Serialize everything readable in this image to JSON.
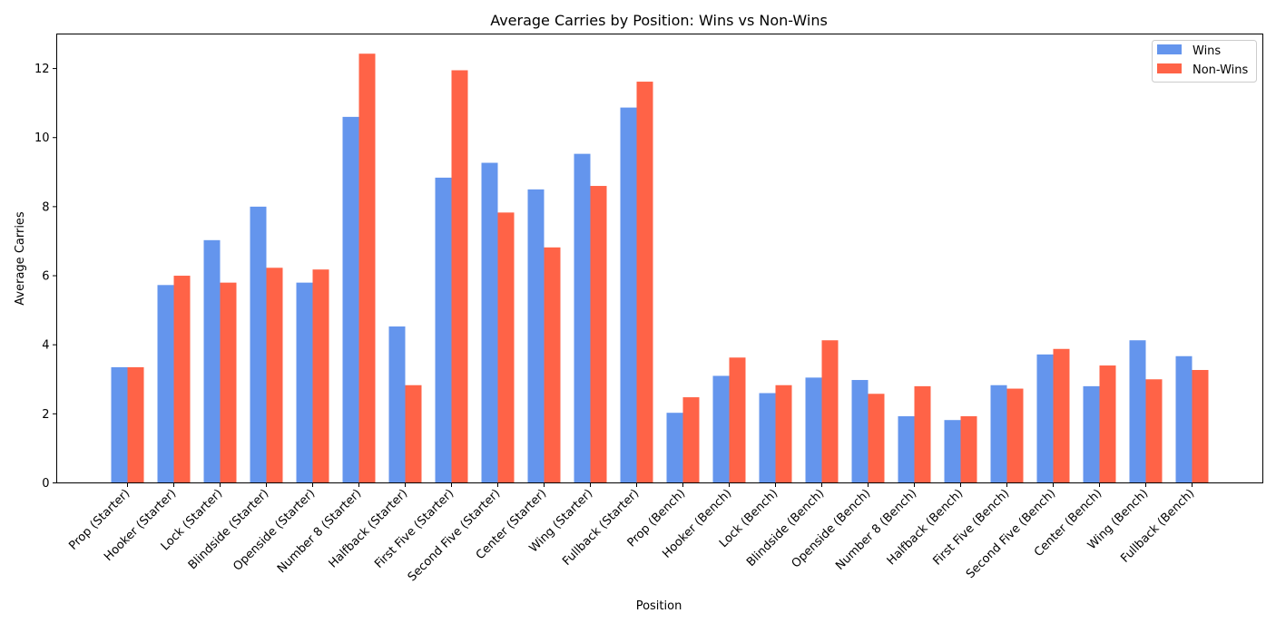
{
  "chart_data": {
    "type": "bar",
    "title": "Average Carries by Position: Wins vs Non-Wins",
    "xlabel": "Position",
    "ylabel": "Average Carries",
    "ylim": [
      0,
      13
    ],
    "yticks": [
      0,
      2,
      4,
      6,
      8,
      10,
      12
    ],
    "grid": false,
    "legend_position": "top-right",
    "categories": [
      "Prop (Starter)",
      "Hooker (Starter)",
      "Lock (Starter)",
      "Blindside (Starter)",
      "Openside (Starter)",
      "Number 8 (Starter)",
      "Halfback (Starter)",
      "First Five (Starter)",
      "Second Five (Starter)",
      "Center (Starter)",
      "Wing (Starter)",
      "Fullback (Starter)",
      "Prop (Bench)",
      "Hooker (Bench)",
      "Lock (Bench)",
      "Blindside (Bench)",
      "Openside (Bench)",
      "Number 8 (Bench)",
      "Halfback (Bench)",
      "First Five (Bench)",
      "Second Five (Bench)",
      "Center (Bench)",
      "Wing (Bench)",
      "Fullback (Bench)"
    ],
    "series": [
      {
        "name": "Wins",
        "color": "#6495ED",
        "values": [
          3.35,
          5.73,
          7.03,
          8.0,
          5.8,
          10.6,
          4.53,
          8.84,
          9.27,
          8.5,
          9.53,
          10.87,
          2.03,
          3.1,
          2.6,
          3.05,
          2.98,
          1.93,
          1.82,
          2.83,
          3.72,
          2.8,
          4.13,
          3.67
        ]
      },
      {
        "name": "Non-Wins",
        "color": "#FF6347",
        "values": [
          3.35,
          6.0,
          5.8,
          6.23,
          6.18,
          12.43,
          2.83,
          11.95,
          7.83,
          6.82,
          8.6,
          11.62,
          2.48,
          3.63,
          2.83,
          4.13,
          2.58,
          2.8,
          1.93,
          2.73,
          3.88,
          3.4,
          3.0,
          3.27
        ]
      }
    ]
  }
}
